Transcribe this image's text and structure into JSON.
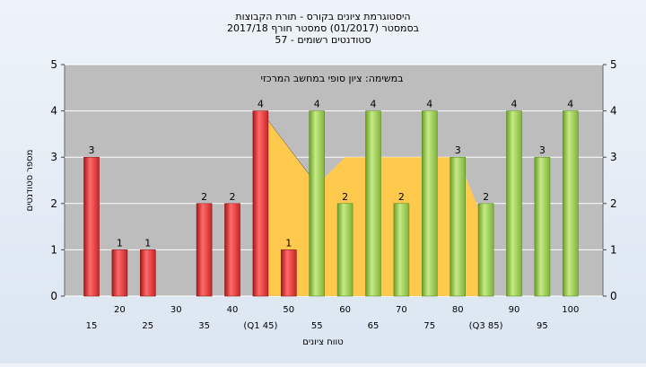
{
  "chart_data": {
    "type": "bar",
    "title": [
      "היסטוגרמת ציונים בקורס - תורת הקבוצות",
      "בסמסטר (01/2017) סמסטר חורף 2017/18",
      "סטודנטים רשומים - 57"
    ],
    "annotation": "במשימה: ציון סופי במחשב המרכזי",
    "xlabel": "טווח ציונים",
    "ylabel": "מספר סטודנטים",
    "ylim": [
      0,
      5
    ],
    "yticks": [
      0,
      1,
      2,
      3,
      4,
      5
    ],
    "grid": true,
    "x_ticks_lower": [
      "15",
      "25",
      "35",
      "(Q1 45)",
      "55",
      "65",
      "75",
      "(Q3 85)",
      "95"
    ],
    "x_ticks_upper": [
      "20",
      "30",
      "40",
      "50",
      "60",
      "70",
      "80",
      "90",
      "100"
    ],
    "categories": [
      "15",
      "20",
      "25",
      "30",
      "35",
      "40",
      "45",
      "50",
      "55",
      "60",
      "65",
      "70",
      "75",
      "80",
      "85",
      "90",
      "95",
      "100"
    ],
    "values": [
      3,
      1,
      1,
      0,
      2,
      2,
      4,
      1,
      4,
      2,
      4,
      2,
      4,
      3,
      2,
      4,
      3,
      4
    ],
    "bar_colors": [
      "red",
      "red",
      "red",
      "red",
      "red",
      "red",
      "red",
      "red",
      "green",
      "green",
      "green",
      "green",
      "green",
      "green",
      "green",
      "green",
      "green",
      "green"
    ],
    "colors": {
      "red": "#e23a3a",
      "green": "#8cc63f",
      "band": "#ffc94d",
      "plot_bg": "#bdbdbd"
    }
  }
}
